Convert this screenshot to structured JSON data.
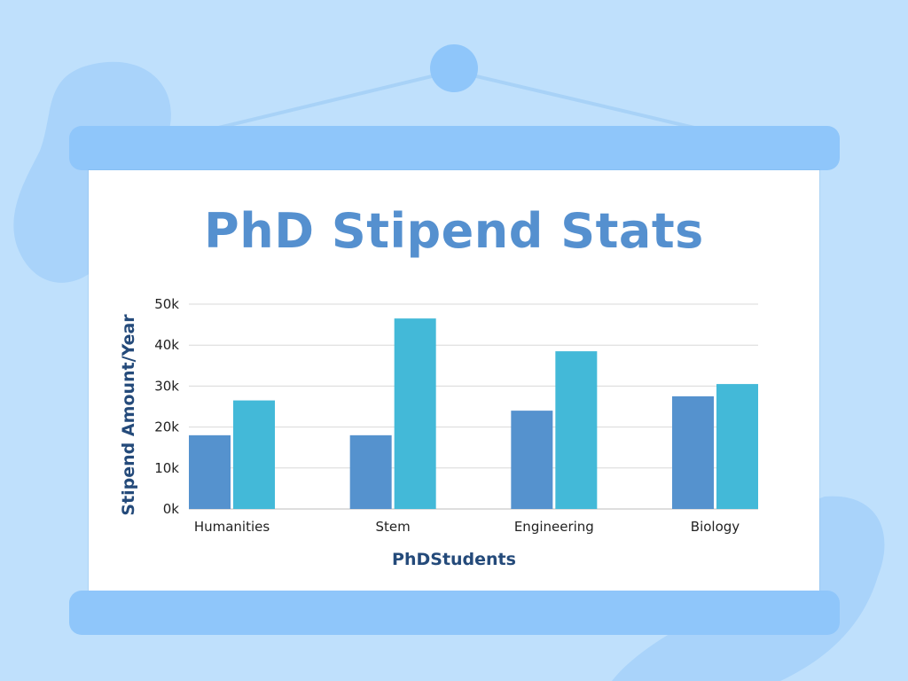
{
  "colors": {
    "background": "#bfe0fc",
    "roller": "#8fc6fa",
    "title": "#5590cf",
    "axis_title": "#244a7a",
    "series1": "#5592ce",
    "series2": "#43b9d8",
    "grid": "#d8d8d8"
  },
  "chart_data": {
    "type": "bar",
    "title": "PhD Stipend Stats",
    "xlabel": "PhDStudents",
    "ylabel": "Stipend Amount/Year",
    "categories": [
      "Humanities",
      "Stem",
      "Engineering",
      "Biology"
    ],
    "series": [
      {
        "values": [
          18000,
          18000,
          24000,
          27500
        ],
        "color": "#5592ce"
      },
      {
        "values": [
          26500,
          46500,
          38500,
          30500
        ],
        "color": "#43b9d8"
      }
    ],
    "ylim": [
      0,
      50000
    ],
    "yticks": [
      {
        "value": 0,
        "label": "0k"
      },
      {
        "value": 10000,
        "label": "10k"
      },
      {
        "value": 20000,
        "label": "20k"
      },
      {
        "value": 30000,
        "label": "30k"
      },
      {
        "value": 40000,
        "label": "40k"
      },
      {
        "value": 50000,
        "label": "50k"
      }
    ],
    "grid": true,
    "legend": "none"
  }
}
